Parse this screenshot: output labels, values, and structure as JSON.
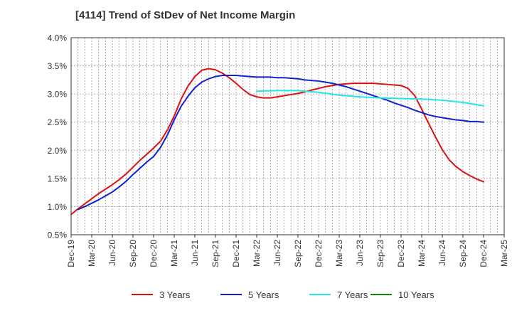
{
  "chart_data": {
    "type": "line",
    "title": "[4114]  Trend of StDev of Net Income Margin",
    "xlabel": "",
    "ylabel": "",
    "ylim": [
      0.5,
      4.0
    ],
    "y_ticks": [
      "0.5%",
      "1.0%",
      "1.5%",
      "2.0%",
      "2.5%",
      "3.0%",
      "3.5%",
      "4.0%"
    ],
    "x_ticks": [
      "Dec-19",
      "Mar-20",
      "Jun-20",
      "Sep-20",
      "Dec-20",
      "Mar-21",
      "Jun-21",
      "Sep-21",
      "Dec-21",
      "Mar-22",
      "Jun-22",
      "Sep-22",
      "Dec-22",
      "Mar-23",
      "Jun-23",
      "Sep-23",
      "Dec-23",
      "Mar-24",
      "Jun-24",
      "Sep-24",
      "Dec-24",
      "Mar-25"
    ],
    "grid": true,
    "legend_position": "bottom",
    "series": [
      {
        "name": "3 Years",
        "color": "#dd1111",
        "points": [
          [
            "Dec-19",
            0.86
          ],
          [
            "Jan-20",
            0.96
          ],
          [
            "Feb-20",
            1.05
          ],
          [
            "Mar-20",
            1.14
          ],
          [
            "Apr-20",
            1.23
          ],
          [
            "May-20",
            1.31
          ],
          [
            "Jun-20",
            1.39
          ],
          [
            "Jul-20",
            1.48
          ],
          [
            "Aug-20",
            1.58
          ],
          [
            "Sep-20",
            1.7
          ],
          [
            "Oct-20",
            1.82
          ],
          [
            "Nov-20",
            1.93
          ],
          [
            "Dec-20",
            2.04
          ],
          [
            "Jan-21",
            2.16
          ],
          [
            "Feb-21",
            2.36
          ],
          [
            "Mar-21",
            2.61
          ],
          [
            "Apr-21",
            2.91
          ],
          [
            "May-21",
            3.14
          ],
          [
            "Jun-21",
            3.31
          ],
          [
            "Jul-21",
            3.42
          ],
          [
            "Aug-21",
            3.45
          ],
          [
            "Sep-21",
            3.43
          ],
          [
            "Oct-21",
            3.37
          ],
          [
            "Nov-21",
            3.29
          ],
          [
            "Dec-21",
            3.19
          ],
          [
            "Jan-22",
            3.08
          ],
          [
            "Feb-22",
            2.99
          ],
          [
            "Mar-22",
            2.95
          ],
          [
            "Apr-22",
            2.93
          ],
          [
            "May-22",
            2.93
          ],
          [
            "Jun-22",
            2.95
          ],
          [
            "Jul-22",
            2.97
          ],
          [
            "Aug-22",
            2.99
          ],
          [
            "Sep-22",
            3.01
          ],
          [
            "Oct-22",
            3.04
          ],
          [
            "Nov-22",
            3.07
          ],
          [
            "Dec-22",
            3.1
          ],
          [
            "Jan-23",
            3.13
          ],
          [
            "Feb-23",
            3.15
          ],
          [
            "Mar-23",
            3.17
          ],
          [
            "Apr-23",
            3.18
          ],
          [
            "May-23",
            3.19
          ],
          [
            "Jun-23",
            3.19
          ],
          [
            "Jul-23",
            3.19
          ],
          [
            "Aug-23",
            3.19
          ],
          [
            "Sep-23",
            3.18
          ],
          [
            "Oct-23",
            3.17
          ],
          [
            "Nov-23",
            3.16
          ],
          [
            "Dec-23",
            3.15
          ],
          [
            "Jan-24",
            3.1
          ],
          [
            "Feb-24",
            2.97
          ],
          [
            "Mar-24",
            2.73
          ],
          [
            "Apr-24",
            2.48
          ],
          [
            "May-24",
            2.24
          ],
          [
            "Jun-24",
            2.01
          ],
          [
            "Jul-24",
            1.83
          ],
          [
            "Aug-24",
            1.71
          ],
          [
            "Sep-24",
            1.62
          ],
          [
            "Oct-24",
            1.55
          ],
          [
            "Nov-24",
            1.49
          ],
          [
            "Dec-24",
            1.44
          ]
        ]
      },
      {
        "name": "5 Years",
        "color": "#1122cc",
        "points": [
          [
            "Jan-20",
            0.95
          ],
          [
            "Feb-20",
            1.0
          ],
          [
            "Mar-20",
            1.06
          ],
          [
            "Apr-20",
            1.12
          ],
          [
            "May-20",
            1.19
          ],
          [
            "Jun-20",
            1.26
          ],
          [
            "Jul-20",
            1.35
          ],
          [
            "Aug-20",
            1.45
          ],
          [
            "Sep-20",
            1.57
          ],
          [
            "Oct-20",
            1.68
          ],
          [
            "Nov-20",
            1.79
          ],
          [
            "Dec-20",
            1.89
          ],
          [
            "Jan-21",
            2.05
          ],
          [
            "Feb-21",
            2.27
          ],
          [
            "Mar-21",
            2.54
          ],
          [
            "Apr-21",
            2.78
          ],
          [
            "May-21",
            2.96
          ],
          [
            "Jun-21",
            3.11
          ],
          [
            "Jul-21",
            3.21
          ],
          [
            "Aug-21",
            3.27
          ],
          [
            "Sep-21",
            3.31
          ],
          [
            "Oct-21",
            3.33
          ],
          [
            "Nov-21",
            3.33
          ],
          [
            "Dec-21",
            3.33
          ],
          [
            "Jan-22",
            3.32
          ],
          [
            "Feb-22",
            3.31
          ],
          [
            "Mar-22",
            3.3
          ],
          [
            "Apr-22",
            3.3
          ],
          [
            "May-22",
            3.3
          ],
          [
            "Jun-22",
            3.29
          ],
          [
            "Jul-22",
            3.29
          ],
          [
            "Aug-22",
            3.28
          ],
          [
            "Sep-22",
            3.27
          ],
          [
            "Oct-22",
            3.25
          ],
          [
            "Nov-22",
            3.24
          ],
          [
            "Dec-22",
            3.23
          ],
          [
            "Jan-23",
            3.21
          ],
          [
            "Feb-23",
            3.19
          ],
          [
            "Mar-23",
            3.16
          ],
          [
            "Apr-23",
            3.13
          ],
          [
            "May-23",
            3.09
          ],
          [
            "Jun-23",
            3.05
          ],
          [
            "Jul-23",
            3.01
          ],
          [
            "Aug-23",
            2.97
          ],
          [
            "Sep-23",
            2.93
          ],
          [
            "Oct-23",
            2.89
          ],
          [
            "Nov-23",
            2.84
          ],
          [
            "Dec-23",
            2.8
          ],
          [
            "Jan-24",
            2.76
          ],
          [
            "Feb-24",
            2.71
          ],
          [
            "Mar-24",
            2.67
          ],
          [
            "Apr-24",
            2.63
          ],
          [
            "May-24",
            2.6
          ],
          [
            "Jun-24",
            2.58
          ],
          [
            "Jul-24",
            2.56
          ],
          [
            "Aug-24",
            2.54
          ],
          [
            "Sep-24",
            2.53
          ],
          [
            "Oct-24",
            2.51
          ],
          [
            "Nov-24",
            2.51
          ],
          [
            "Dec-24",
            2.5
          ]
        ]
      },
      {
        "name": "7 Years",
        "color": "#22e5e5",
        "points": [
          [
            "Mar-22",
            3.05
          ],
          [
            "Jun-22",
            3.06
          ],
          [
            "Sep-22",
            3.06
          ],
          [
            "Dec-22",
            3.03
          ],
          [
            "Mar-23",
            2.98
          ],
          [
            "Jun-23",
            2.95
          ],
          [
            "Sep-23",
            2.93
          ],
          [
            "Dec-23",
            2.92
          ],
          [
            "Mar-24",
            2.91
          ],
          [
            "Jun-24",
            2.89
          ],
          [
            "Sep-24",
            2.85
          ],
          [
            "Dec-24",
            2.79
          ]
        ]
      },
      {
        "name": "10 Years",
        "color": "#118811",
        "points": []
      }
    ]
  }
}
